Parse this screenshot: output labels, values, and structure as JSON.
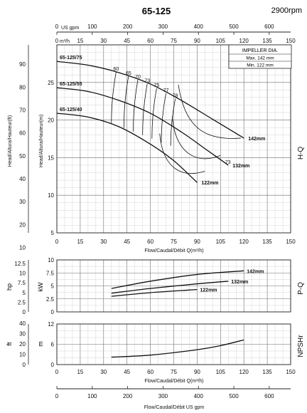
{
  "header": {
    "title": "65-125",
    "speed": "2900rpm"
  },
  "axes": {
    "top_usgpm_unit": "US gpm",
    "top_usgpm_ticks": [
      "0",
      "100",
      "200",
      "300",
      "400",
      "500",
      "600"
    ],
    "top_m3h_unit": "m³/h",
    "flow_ticks": [
      "0",
      "15",
      "30",
      "45",
      "60",
      "75",
      "90",
      "105",
      "120",
      "135",
      "150"
    ],
    "hq_left_label": "Head/Altura/Hauteur(ft)",
    "hq_right_label": "Head/Altura/Hauteur(m)",
    "hq_ft_ticks": [
      "10",
      "20",
      "30",
      "40",
      "50",
      "60",
      "70",
      "80",
      "90"
    ],
    "hq_m_ticks": [
      "5",
      "10",
      "15",
      "20",
      "25"
    ],
    "hq_xlabel": "Flow/Caudal/Débit Q(m³/h)",
    "pq_left_label": "hp",
    "pq_right_label": "kW",
    "pq_hp_ticks": [
      "0",
      "2.5",
      "5",
      "7.5",
      "10",
      "12.5"
    ],
    "pq_kw_ticks": [
      "0",
      "2.5",
      "5",
      "7.5",
      "10"
    ],
    "npsh_left_label": "ft",
    "npsh_right_label": "m",
    "npsh_ft_ticks": [
      "0",
      "10",
      "20",
      "30",
      "40"
    ],
    "npsh_m_ticks": [
      "0",
      "6",
      "12"
    ],
    "npsh_xlabel": "Flow/Caudal/Débit Q(m³/h)",
    "bottom_usgpm_ticks": [
      "0",
      "100",
      "200",
      "300",
      "400",
      "500",
      "600"
    ],
    "bottom_xlabel": "Flow/Caudal/Débit  US gpm"
  },
  "side_labels": {
    "hq": "H-Q",
    "pq": "P-Q",
    "npsh": "NPSHr"
  },
  "impeller_box": {
    "title": "IMPELLER DIA.",
    "max": "Max.  142  mm",
    "min": "Min.  122  mm"
  },
  "colors": {
    "curve": "#111111",
    "grid_major": "#6e6e6e",
    "grid_minor": "#c9c9c9"
  },
  "chart_data": [
    {
      "type": "line",
      "panel": "H-Q",
      "xlabel": "Flow/Caudal/Débit Q(m³/h)",
      "ylabel": "Head/Altura/Hauteur(m)",
      "xlim": [
        0,
        150
      ],
      "ylim": [
        5,
        30
      ],
      "grid": true,
      "series": [
        {
          "name": "142mm",
          "x": [
            0,
            20,
            40,
            60,
            80,
            100,
            120
          ],
          "y": [
            27.8,
            27.3,
            26.3,
            24.8,
            22.6,
            20.1,
            17.6
          ]
        },
        {
          "name": "132mm",
          "x": [
            0,
            20,
            40,
            60,
            80,
            95,
            110
          ],
          "y": [
            24.3,
            23.8,
            22.6,
            20.9,
            18.4,
            16.2,
            14.0
          ]
        },
        {
          "name": "122mm",
          "x": [
            0,
            20,
            40,
            60,
            75,
            90
          ],
          "y": [
            20.9,
            20.4,
            19.1,
            16.8,
            14.6,
            11.7
          ]
        }
      ],
      "model_labels": [
        "65-125/75",
        "65-125/55",
        "65-125/40"
      ],
      "efficiency_labels": [
        "60",
        "65",
        "70",
        "73",
        "75",
        "77",
        "78",
        "73"
      ]
    },
    {
      "type": "line",
      "panel": "P-Q",
      "ylabel": "kW",
      "xlim": [
        0,
        150
      ],
      "ylim": [
        0,
        10
      ],
      "grid": true,
      "series": [
        {
          "name": "142mm",
          "x": [
            35,
            60,
            90,
            120
          ],
          "y": [
            4.5,
            5.9,
            7.2,
            7.9
          ]
        },
        {
          "name": "132mm",
          "x": [
            35,
            60,
            90,
            110
          ],
          "y": [
            3.6,
            4.5,
            5.4,
            5.9
          ]
        },
        {
          "name": "122mm",
          "x": [
            35,
            60,
            90
          ],
          "y": [
            3.0,
            3.7,
            4.3
          ]
        }
      ]
    },
    {
      "type": "line",
      "panel": "NPSHr",
      "xlabel": "Flow/Caudal/Débit Q(m³/h)",
      "ylabel": "m",
      "xlim": [
        0,
        150
      ],
      "ylim": [
        0,
        12
      ],
      "grid": true,
      "series": [
        {
          "x": [
            35,
            60,
            90,
            105,
            120
          ],
          "y": [
            2.2,
            2.8,
            4.4,
            5.6,
            7.3
          ]
        }
      ]
    }
  ]
}
